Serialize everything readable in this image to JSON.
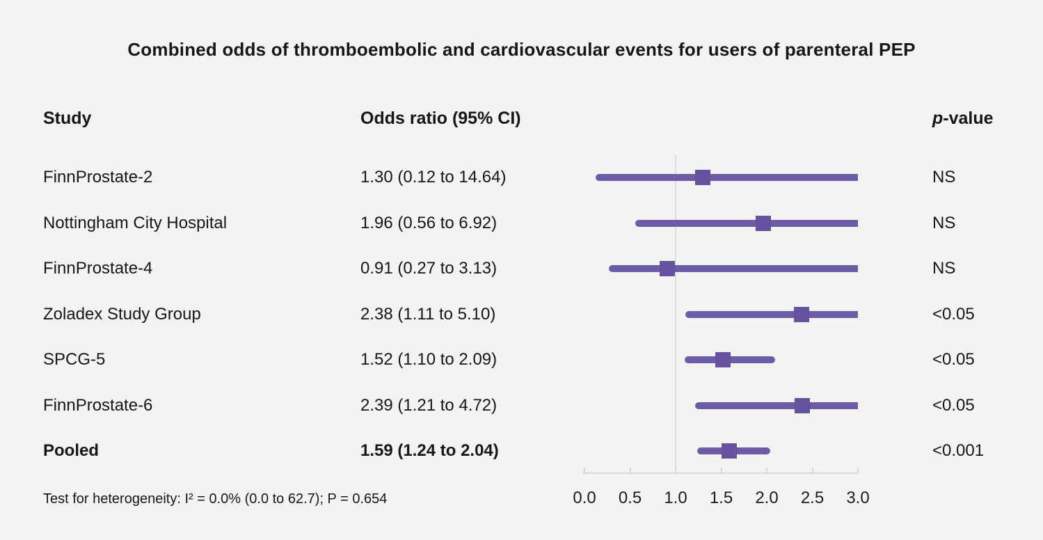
{
  "title": "Combined odds of thromboembolic and cardiovascular events for users of parenteral PEP",
  "columns": {
    "study": "Study",
    "odds_ratio": "Odds ratio (95% CI)",
    "p_italic": "p",
    "p_rest": "-value"
  },
  "footer": "Test for heterogeneity: I² = 0.0% (0.0 to 62.7); P = 0.654",
  "colors": {
    "background": "#f3f3f1",
    "ci_line": "#6d5ba8",
    "marker": "#66519f",
    "reference_line": "#dbdee2",
    "axis": "#d3d7dc",
    "text": "#161616"
  },
  "chart_data": {
    "type": "scatter",
    "variant": "forest-plot",
    "title": "Combined odds of thromboembolic and cardiovascular events for users of parenteral PEP",
    "xlabel": "Odds ratio",
    "xlim": [
      0.0,
      3.0
    ],
    "x_ticks": [
      0.0,
      0.5,
      1.0,
      1.5,
      2.0,
      2.5,
      3.0
    ],
    "reference_line_x": 1.0,
    "grid": false,
    "rows": [
      {
        "study": "FinnProstate-2",
        "or": 1.3,
        "ci_low": 0.12,
        "ci_high": 14.64,
        "or_label": "1.30 (0.12 to 14.64)",
        "p": "NS",
        "bold": false
      },
      {
        "study": "Nottingham City Hospital",
        "or": 1.96,
        "ci_low": 0.56,
        "ci_high": 6.92,
        "or_label": "1.96 (0.56 to 6.92)",
        "p": "NS",
        "bold": false
      },
      {
        "study": "FinnProstate-4",
        "or": 0.91,
        "ci_low": 0.27,
        "ci_high": 3.13,
        "or_label": "0.91 (0.27 to 3.13)",
        "p": "NS",
        "bold": false
      },
      {
        "study": "Zoladex Study Group",
        "or": 2.38,
        "ci_low": 1.11,
        "ci_high": 5.1,
        "or_label": "2.38 (1.11 to 5.10)",
        "p": "<0.05",
        "bold": false
      },
      {
        "study": "SPCG-5",
        "or": 1.52,
        "ci_low": 1.1,
        "ci_high": 2.09,
        "or_label": "1.52 (1.10 to 2.09)",
        "p": "<0.05",
        "bold": false
      },
      {
        "study": "FinnProstate-6",
        "or": 2.39,
        "ci_low": 1.21,
        "ci_high": 4.72,
        "or_label": "2.39 (1.21 to 4.72)",
        "p": "<0.05",
        "bold": false
      },
      {
        "study": "Pooled",
        "or": 1.59,
        "ci_low": 1.24,
        "ci_high": 2.04,
        "or_label": "1.59 (1.24 to 2.04)",
        "p": "<0.001",
        "bold": true
      }
    ]
  }
}
